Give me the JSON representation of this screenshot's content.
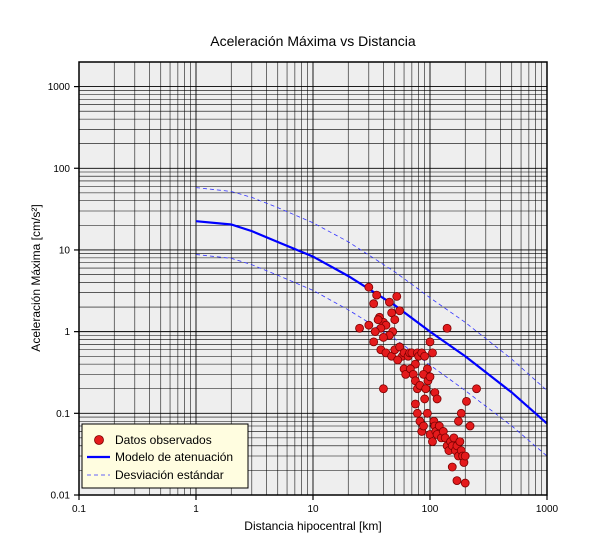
{
  "chart_data": {
    "type": "scatter",
    "title": "Aceleración Máxima vs Distancia",
    "xlabel": "Distancia hipocentral [km]",
    "ylabel": "Aceleración Máxima [cm/s²]",
    "x_scale": "log",
    "y_scale": "log",
    "xlim": [
      0.1,
      1000
    ],
    "ylim": [
      0.01,
      2000
    ],
    "x_ticks": [
      {
        "value": 0.1,
        "label": "0.1"
      },
      {
        "value": 1,
        "label": "1"
      },
      {
        "value": 10,
        "label": "10"
      },
      {
        "value": 100,
        "label": "100"
      },
      {
        "value": 1000,
        "label": "1000"
      }
    ],
    "y_ticks": [
      {
        "value": 0.01,
        "label": "0.01"
      },
      {
        "value": 0.1,
        "label": "0.1"
      },
      {
        "value": 1,
        "label": "1"
      },
      {
        "value": 10,
        "label": "10"
      },
      {
        "value": 100,
        "label": "100"
      },
      {
        "value": 1000,
        "label": "1000"
      }
    ],
    "grid": true,
    "legend_position": "bottom-left",
    "series": [
      {
        "name": "Datos observados",
        "kind": "scatter",
        "color": "#e41a1c",
        "points": [
          [
            30,
            3.5
          ],
          [
            33,
            2.2
          ],
          [
            35,
            2.8
          ],
          [
            37,
            1.5
          ],
          [
            40,
            1.3
          ],
          [
            42,
            1.2
          ],
          [
            45,
            2.3
          ],
          [
            47,
            1.7
          ],
          [
            50,
            1.4
          ],
          [
            52,
            2.7
          ],
          [
            55,
            1.8
          ],
          [
            48,
            1.0
          ],
          [
            45,
            0.9
          ],
          [
            40,
            0.85
          ],
          [
            38,
            1.1
          ],
          [
            36,
            1.4
          ],
          [
            34,
            1.0
          ],
          [
            30,
            1.2
          ],
          [
            25,
            1.1
          ],
          [
            33,
            0.75
          ],
          [
            38,
            0.6
          ],
          [
            42,
            0.55
          ],
          [
            47,
            0.5
          ],
          [
            50,
            0.6
          ],
          [
            55,
            0.65
          ],
          [
            58,
            0.5
          ],
          [
            53,
            0.45
          ],
          [
            60,
            0.55
          ],
          [
            65,
            0.5
          ],
          [
            67,
            0.55
          ],
          [
            70,
            0.55
          ],
          [
            75,
            0.4
          ],
          [
            78,
            0.55
          ],
          [
            80,
            0.5
          ],
          [
            85,
            0.55
          ],
          [
            90,
            0.5
          ],
          [
            95,
            0.35
          ],
          [
            100,
            0.75
          ],
          [
            105,
            0.55
          ],
          [
            60,
            0.35
          ],
          [
            62,
            0.3
          ],
          [
            68,
            0.35
          ],
          [
            72,
            0.3
          ],
          [
            75,
            0.25
          ],
          [
            78,
            0.2
          ],
          [
            82,
            0.22
          ],
          [
            88,
            0.3
          ],
          [
            92,
            0.2
          ],
          [
            96,
            0.25
          ],
          [
            100,
            0.28
          ],
          [
            110,
            0.18
          ],
          [
            115,
            0.15
          ],
          [
            75,
            0.13
          ],
          [
            78,
            0.1
          ],
          [
            82,
            0.08
          ],
          [
            85,
            0.06
          ],
          [
            88,
            0.07
          ],
          [
            90,
            0.15
          ],
          [
            95,
            0.1
          ],
          [
            100,
            0.055
          ],
          [
            105,
            0.045
          ],
          [
            108,
            0.08
          ],
          [
            110,
            0.07
          ],
          [
            112,
            0.06
          ],
          [
            115,
            0.055
          ],
          [
            120,
            0.07
          ],
          [
            125,
            0.05
          ],
          [
            130,
            0.06
          ],
          [
            135,
            0.05
          ],
          [
            140,
            0.04
          ],
          [
            145,
            0.035
          ],
          [
            150,
            0.045
          ],
          [
            155,
            0.04
          ],
          [
            160,
            0.05
          ],
          [
            165,
            0.035
          ],
          [
            170,
            0.04
          ],
          [
            175,
            0.03
          ],
          [
            180,
            0.045
          ],
          [
            185,
            0.035
          ],
          [
            190,
            0.03
          ],
          [
            195,
            0.025
          ],
          [
            200,
            0.03
          ],
          [
            170,
            0.015
          ],
          [
            200,
            0.014
          ],
          [
            155,
            0.022
          ],
          [
            175,
            0.08
          ],
          [
            185,
            0.1
          ],
          [
            205,
            0.14
          ],
          [
            220,
            0.07
          ],
          [
            250,
            0.2
          ],
          [
            140,
            1.1
          ],
          [
            40,
            0.2
          ]
        ]
      },
      {
        "name": "Modelo de atenuación",
        "kind": "line",
        "style": "solid",
        "color": "#0000ff",
        "points": [
          [
            1,
            22.5
          ],
          [
            2,
            20.5
          ],
          [
            3,
            17
          ],
          [
            5,
            12.5
          ],
          [
            10,
            8.3
          ],
          [
            20,
            4.8
          ],
          [
            50,
            2.1
          ],
          [
            100,
            1.0
          ],
          [
            200,
            0.5
          ],
          [
            500,
            0.18
          ],
          [
            1000,
            0.075
          ]
        ]
      },
      {
        "name": "Desviación estándar",
        "kind": "line",
        "style": "dashed",
        "color": "#3333ff",
        "points": [
          [
            1,
            58
          ],
          [
            2,
            52
          ],
          [
            3,
            44
          ],
          [
            5,
            33
          ],
          [
            10,
            21.5
          ],
          [
            20,
            12.6
          ],
          [
            50,
            5.4
          ],
          [
            100,
            2.6
          ],
          [
            200,
            1.3
          ],
          [
            500,
            0.46
          ],
          [
            1000,
            0.19
          ]
        ]
      },
      {
        "name": "Desviación estándar",
        "kind": "line",
        "style": "dashed",
        "color": "#3333ff",
        "points": [
          [
            1,
            8.8
          ],
          [
            2,
            7.9
          ],
          [
            3,
            6.6
          ],
          [
            5,
            4.9
          ],
          [
            10,
            3.2
          ],
          [
            20,
            1.85
          ],
          [
            50,
            0.82
          ],
          [
            100,
            0.39
          ],
          [
            200,
            0.19
          ],
          [
            500,
            0.07
          ],
          [
            1000,
            0.03
          ]
        ]
      }
    ],
    "legend": {
      "entries": [
        {
          "label": "Datos observados",
          "symbol": "circle",
          "color": "#e41a1c"
        },
        {
          "label": "Modelo de atenuación",
          "symbol": "solid-line",
          "color": "#0000ff"
        },
        {
          "label": "Desviación estándar",
          "symbol": "dashed-line",
          "color": "#3333ff"
        }
      ]
    }
  }
}
